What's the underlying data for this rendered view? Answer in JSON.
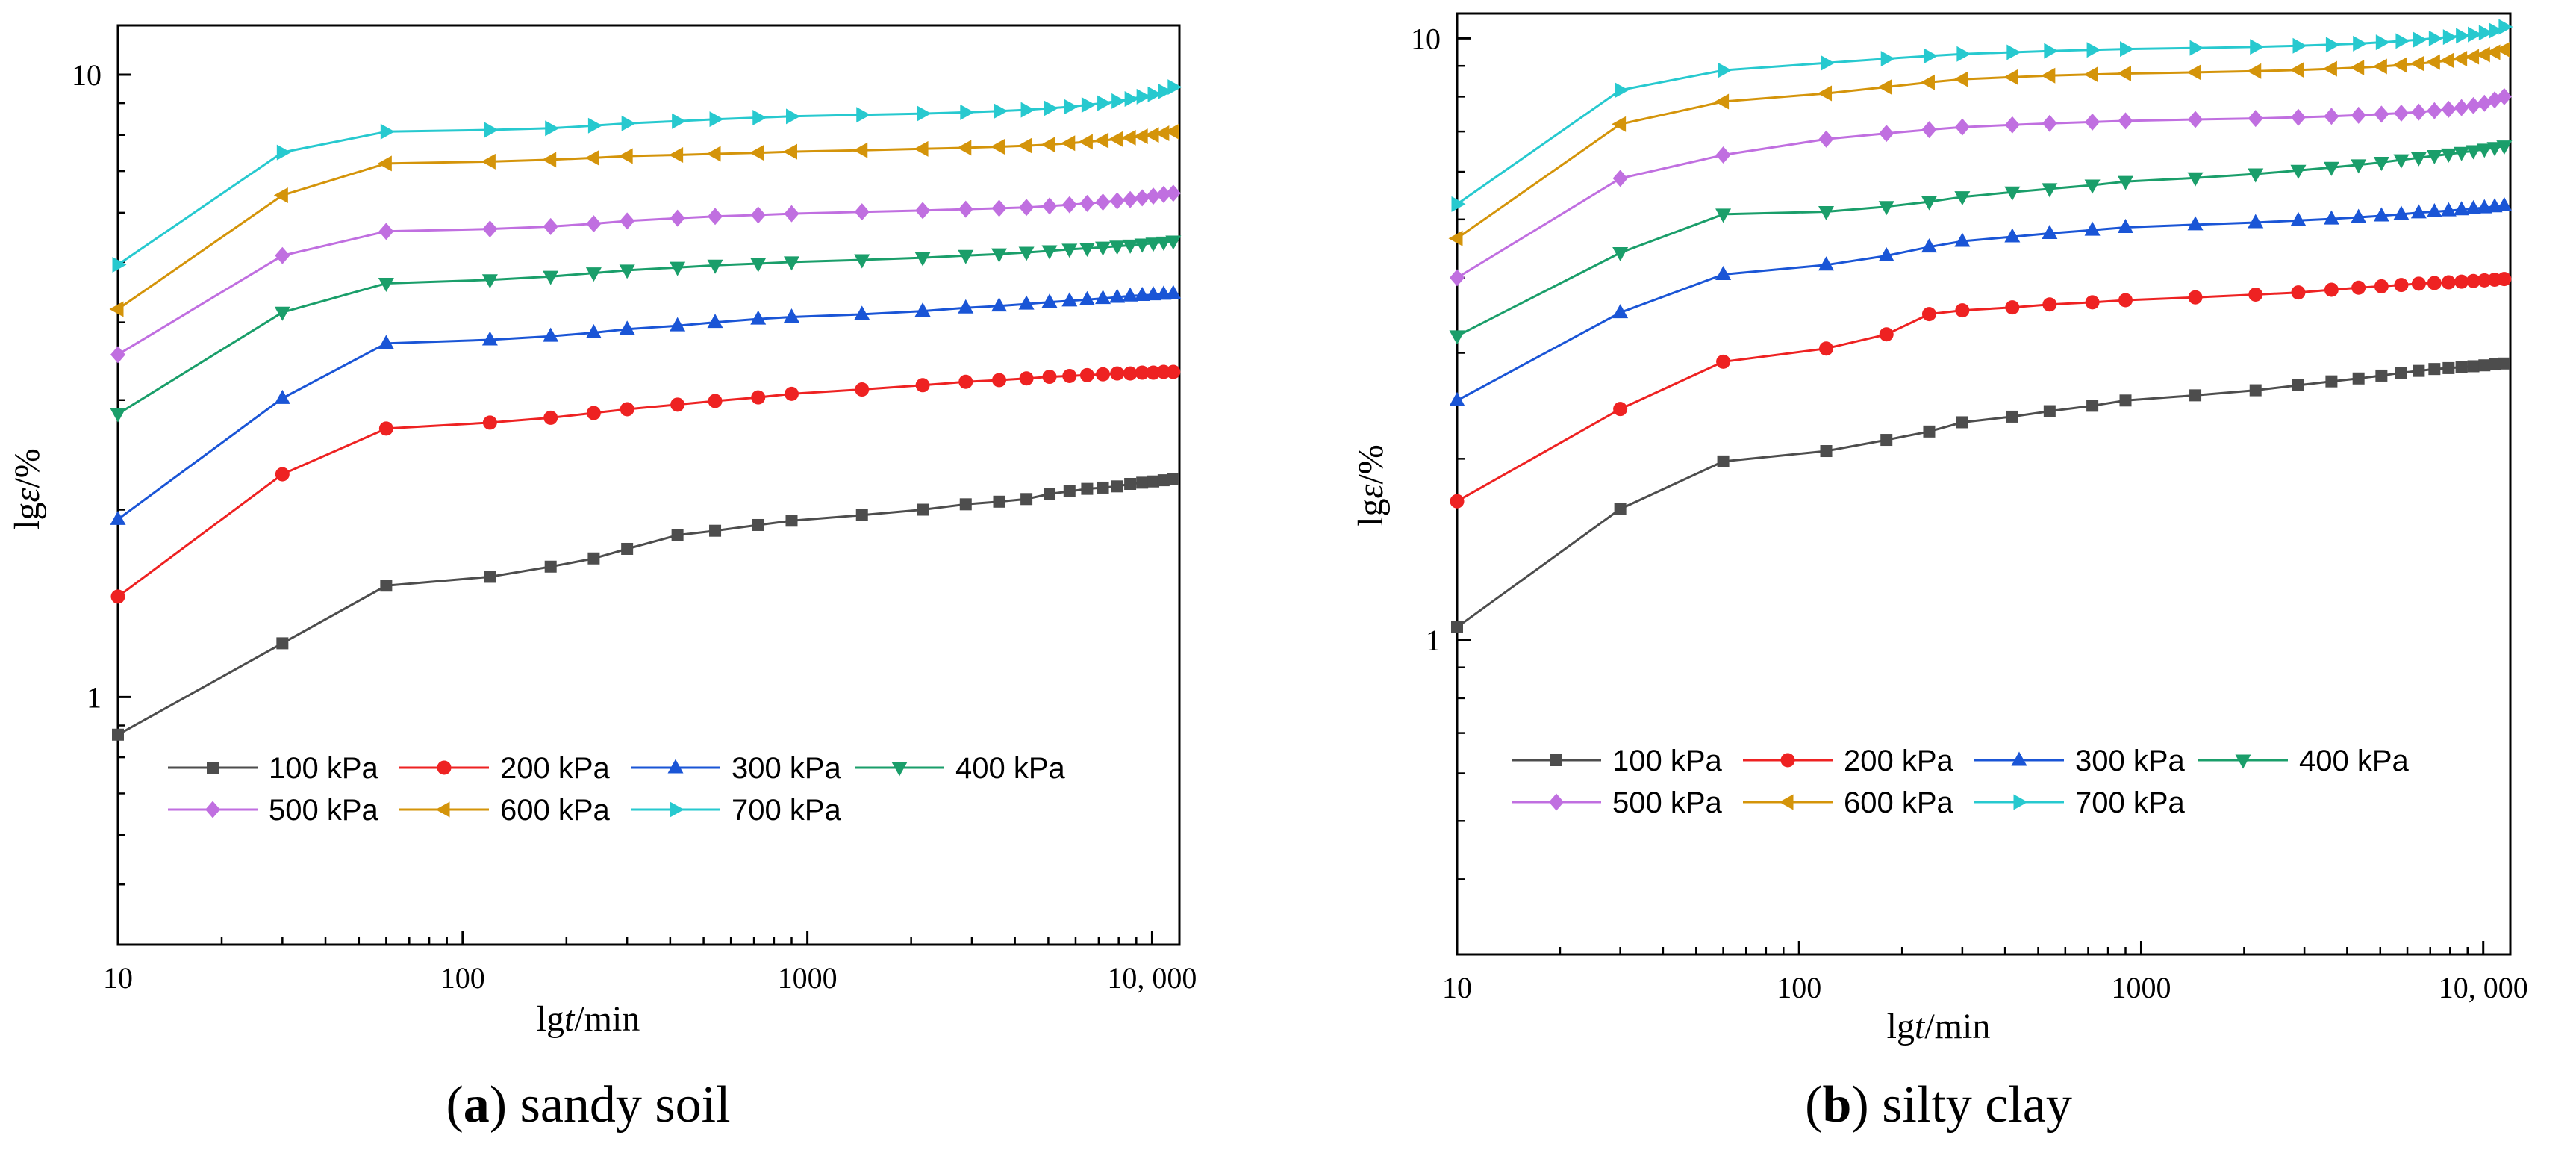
{
  "chart_data": [
    {
      "type": "line",
      "caption_letter": "a",
      "caption_text": " sandy soil",
      "xlabel_prefix": "lg",
      "xlabel_var": "t",
      "xlabel_suffix": "/min",
      "ylabel_prefix": "lg",
      "ylabel_var": "ε",
      "ylabel_suffix": "/%",
      "xscale": "log",
      "yscale": "log",
      "xlim": [
        10,
        12000
      ],
      "ylim": [
        0.4,
        12
      ],
      "xticks": [
        10,
        100,
        1000,
        10000
      ],
      "xtick_labels": [
        "10",
        "100",
        "1000",
        "10, 000"
      ],
      "yticks": [
        1,
        10
      ],
      "ytick_labels": [
        "1",
        "10"
      ],
      "legend_position": "lower-center",
      "x": [
        10,
        30,
        60,
        120,
        180,
        240,
        300,
        420,
        540,
        720,
        900,
        1440,
        2160,
        2880,
        3600,
        4320,
        5040,
        5760,
        6480,
        7200,
        7920,
        8640,
        9360,
        10080,
        10800,
        11520
      ],
      "series": [
        {
          "name": "100 kPa",
          "color": "#4d4d4d",
          "marker": "square",
          "values": [
            0.87,
            1.22,
            1.51,
            1.56,
            1.62,
            1.67,
            1.73,
            1.82,
            1.85,
            1.89,
            1.92,
            1.96,
            2.0,
            2.04,
            2.06,
            2.08,
            2.12,
            2.14,
            2.16,
            2.17,
            2.18,
            2.2,
            2.21,
            2.22,
            2.23,
            2.24
          ]
        },
        {
          "name": "200 kPa",
          "color": "#ee2222",
          "marker": "circle",
          "values": [
            1.45,
            2.28,
            2.7,
            2.76,
            2.81,
            2.86,
            2.9,
            2.95,
            2.99,
            3.03,
            3.07,
            3.12,
            3.17,
            3.21,
            3.23,
            3.25,
            3.27,
            3.28,
            3.29,
            3.3,
            3.31,
            3.31,
            3.32,
            3.32,
            3.33,
            3.33
          ]
        },
        {
          "name": "300 kPa",
          "color": "#1a55d6",
          "marker": "triangle-up",
          "values": [
            1.93,
            3.02,
            3.7,
            3.75,
            3.8,
            3.85,
            3.9,
            3.95,
            4.0,
            4.05,
            4.08,
            4.12,
            4.17,
            4.22,
            4.25,
            4.28,
            4.31,
            4.33,
            4.35,
            4.37,
            4.39,
            4.41,
            4.42,
            4.43,
            4.44,
            4.45
          ]
        },
        {
          "name": "400 kPa",
          "color": "#1a9e6a",
          "marker": "triangle-down",
          "values": [
            2.85,
            4.15,
            4.62,
            4.68,
            4.74,
            4.8,
            4.85,
            4.9,
            4.94,
            4.97,
            5.0,
            5.04,
            5.08,
            5.12,
            5.15,
            5.18,
            5.21,
            5.24,
            5.26,
            5.28,
            5.3,
            5.32,
            5.34,
            5.36,
            5.38,
            5.4
          ]
        },
        {
          "name": "500 kPa",
          "color": "#c06fe0",
          "marker": "diamond",
          "values": [
            3.55,
            5.12,
            5.6,
            5.65,
            5.7,
            5.76,
            5.82,
            5.88,
            5.92,
            5.95,
            5.98,
            6.02,
            6.05,
            6.08,
            6.1,
            6.12,
            6.15,
            6.18,
            6.21,
            6.24,
            6.27,
            6.3,
            6.34,
            6.38,
            6.42,
            6.45
          ]
        },
        {
          "name": "600 kPa",
          "color": "#d4940a",
          "marker": "triangle-left",
          "values": [
            4.2,
            6.4,
            7.2,
            7.25,
            7.3,
            7.35,
            7.4,
            7.43,
            7.46,
            7.49,
            7.52,
            7.56,
            7.6,
            7.63,
            7.66,
            7.69,
            7.72,
            7.76,
            7.8,
            7.84,
            7.88,
            7.92,
            7.96,
            8.0,
            8.05,
            8.1
          ]
        },
        {
          "name": "700 kPa",
          "color": "#27c9cf",
          "marker": "triangle-right",
          "values": [
            4.95,
            7.5,
            8.1,
            8.15,
            8.2,
            8.28,
            8.35,
            8.42,
            8.48,
            8.53,
            8.57,
            8.62,
            8.66,
            8.7,
            8.74,
            8.78,
            8.83,
            8.88,
            8.94,
            9.0,
            9.07,
            9.14,
            9.22,
            9.3,
            9.4,
            9.55
          ]
        }
      ]
    },
    {
      "type": "line",
      "caption_letter": "b",
      "caption_text": " silty clay",
      "xlabel_prefix": "lg",
      "xlabel_var": "t",
      "xlabel_suffix": "/min",
      "ylabel_prefix": "lg",
      "ylabel_var": "ε",
      "ylabel_suffix": "/%",
      "xscale": "log",
      "yscale": "log",
      "xlim": [
        10,
        12000
      ],
      "ylim": [
        0.3,
        11
      ],
      "xticks": [
        10,
        100,
        1000,
        10000
      ],
      "xtick_labels": [
        "10",
        "100",
        "1000",
        "10, 000"
      ],
      "yticks": [
        1,
        10
      ],
      "ytick_labels": [
        "1",
        "10"
      ],
      "legend_position": "lower-center",
      "x": [
        10,
        30,
        60,
        120,
        180,
        240,
        300,
        420,
        540,
        720,
        900,
        1440,
        2160,
        2880,
        3600,
        4320,
        5040,
        5760,
        6480,
        7200,
        7920,
        8640,
        9360,
        10080,
        10800,
        11520
      ],
      "series": [
        {
          "name": "100 kPa",
          "color": "#4d4d4d",
          "marker": "square",
          "values": [
            1.05,
            1.65,
            1.98,
            2.06,
            2.15,
            2.22,
            2.3,
            2.35,
            2.4,
            2.45,
            2.5,
            2.55,
            2.6,
            2.65,
            2.69,
            2.72,
            2.75,
            2.78,
            2.8,
            2.82,
            2.83,
            2.84,
            2.85,
            2.86,
            2.87,
            2.88
          ]
        },
        {
          "name": "200 kPa",
          "color": "#ee2222",
          "marker": "circle",
          "values": [
            1.7,
            2.42,
            2.9,
            3.05,
            3.22,
            3.48,
            3.53,
            3.57,
            3.61,
            3.64,
            3.67,
            3.71,
            3.75,
            3.78,
            3.82,
            3.85,
            3.87,
            3.89,
            3.91,
            3.92,
            3.93,
            3.94,
            3.95,
            3.96,
            3.97,
            3.98
          ]
        },
        {
          "name": "300 kPa",
          "color": "#1a55d6",
          "marker": "triangle-up",
          "values": [
            2.5,
            3.5,
            4.05,
            4.2,
            4.35,
            4.5,
            4.6,
            4.68,
            4.74,
            4.8,
            4.85,
            4.9,
            4.94,
            4.98,
            5.01,
            5.04,
            5.07,
            5.1,
            5.13,
            5.15,
            5.17,
            5.19,
            5.21,
            5.23,
            5.25,
            5.27
          ]
        },
        {
          "name": "400 kPa",
          "color": "#1a9e6a",
          "marker": "triangle-down",
          "values": [
            3.2,
            4.4,
            5.1,
            5.15,
            5.25,
            5.35,
            5.45,
            5.55,
            5.62,
            5.7,
            5.78,
            5.86,
            5.95,
            6.03,
            6.1,
            6.16,
            6.22,
            6.28,
            6.33,
            6.38,
            6.42,
            6.46,
            6.5,
            6.54,
            6.58,
            6.62
          ]
        },
        {
          "name": "500 kPa",
          "color": "#c06fe0",
          "marker": "diamond",
          "values": [
            4.0,
            5.85,
            6.4,
            6.8,
            6.95,
            7.05,
            7.12,
            7.18,
            7.22,
            7.26,
            7.29,
            7.33,
            7.36,
            7.39,
            7.42,
            7.45,
            7.48,
            7.51,
            7.54,
            7.58,
            7.62,
            7.67,
            7.73,
            7.8,
            7.9,
            8.0
          ]
        },
        {
          "name": "600 kPa",
          "color": "#d4940a",
          "marker": "triangle-left",
          "values": [
            4.65,
            7.2,
            7.85,
            8.1,
            8.3,
            8.45,
            8.55,
            8.62,
            8.67,
            8.71,
            8.74,
            8.78,
            8.82,
            8.86,
            8.9,
            8.94,
            8.98,
            9.03,
            9.08,
            9.13,
            9.19,
            9.25,
            9.32,
            9.4,
            9.48,
            9.58
          ]
        },
        {
          "name": "700 kPa",
          "color": "#27c9cf",
          "marker": "triangle-right",
          "values": [
            5.3,
            8.2,
            8.85,
            9.1,
            9.25,
            9.35,
            9.42,
            9.48,
            9.53,
            9.57,
            9.6,
            9.64,
            9.68,
            9.72,
            9.76,
            9.8,
            9.85,
            9.9,
            9.95,
            10.0,
            10.05,
            10.1,
            10.15,
            10.22,
            10.3,
            10.45
          ]
        }
      ]
    }
  ]
}
